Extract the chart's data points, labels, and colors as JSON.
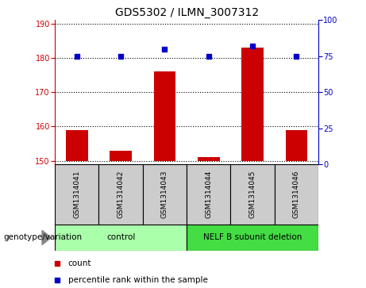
{
  "title": "GDS5302 / ILMN_3007312",
  "samples": [
    "GSM1314041",
    "GSM1314042",
    "GSM1314043",
    "GSM1314044",
    "GSM1314045",
    "GSM1314046"
  ],
  "counts": [
    159,
    153,
    176,
    151,
    183,
    159
  ],
  "percentile_ranks": [
    75,
    75,
    80,
    75,
    82,
    75
  ],
  "ylim_left": [
    149,
    191
  ],
  "yticks_left": [
    150,
    160,
    170,
    180,
    190
  ],
  "ylim_right": [
    0,
    100
  ],
  "yticks_right": [
    0,
    25,
    50,
    75,
    100
  ],
  "bar_color": "#cc0000",
  "dot_color": "#0000cc",
  "grid_color": "#000000",
  "groups": [
    {
      "label": "control",
      "color": "#aaffaa"
    },
    {
      "label": "NELF B subunit deletion",
      "color": "#44dd44"
    }
  ],
  "sample_box_color": "#cccccc",
  "legend_count_label": "count",
  "legend_pct_label": "percentile rank within the sample",
  "genotype_label": "genotype/variation",
  "bar_width": 0.5,
  "figsize": [
    4.61,
    3.63
  ],
  "dpi": 100
}
